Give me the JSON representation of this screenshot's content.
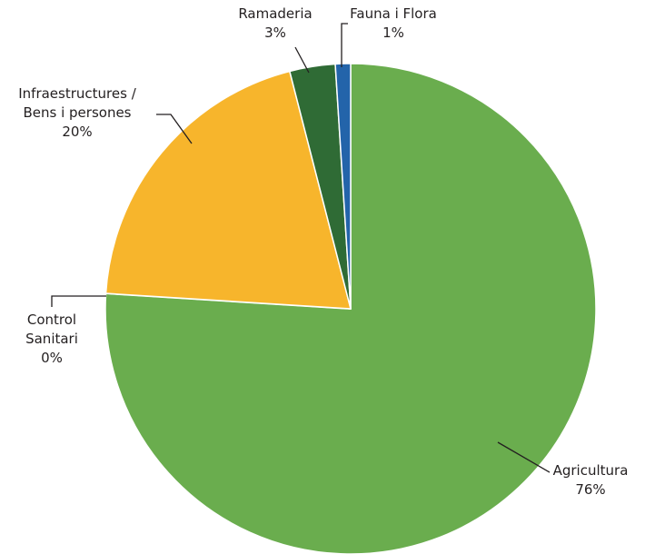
{
  "chart_data": {
    "type": "pie",
    "slices": [
      {
        "label_lines": [
          "Agricultura"
        ],
        "percent_text": "76%",
        "value": 76,
        "color": "#6aad4e"
      },
      {
        "label_lines": [
          "Control",
          "Sanitari"
        ],
        "percent_text": "0%",
        "value": 0,
        "color": "#e6e6e6"
      },
      {
        "label_lines": [
          "Infraestructures /",
          "Bens i persones"
        ],
        "percent_text": "20%",
        "value": 20,
        "color": "#f7b52c"
      },
      {
        "label_lines": [
          "Ramaderia"
        ],
        "percent_text": "3%",
        "value": 3,
        "color": "#2f6b35"
      },
      {
        "label_lines": [
          "Fauna i Flora"
        ],
        "percent_text": "1%",
        "value": 1,
        "color": "#2364aa"
      }
    ],
    "start": "12 o'clock",
    "direction": "clockwise",
    "legend": "none"
  }
}
